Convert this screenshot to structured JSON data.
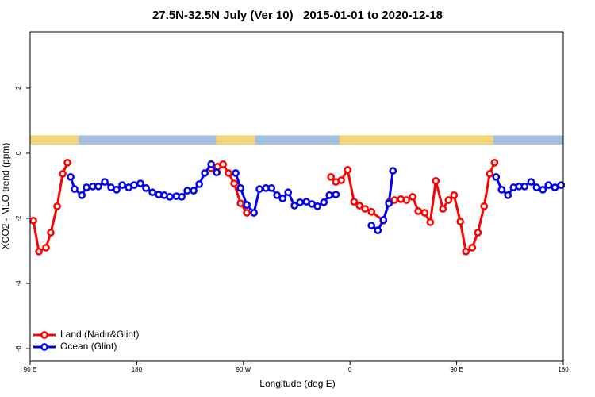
{
  "chart_data": {
    "type": "line",
    "title": "27.5N-32.5N July (Ver 10)   2015-01-01 to 2020-12-18",
    "xlabel": "Longitude (deg E)",
    "ylabel": "XCO2 - MLO trend (ppm)",
    "xlim": [
      90,
      540
    ],
    "xticks": [
      {
        "value": 90,
        "label": "90 E"
      },
      180,
      {
        "value": 270,
        "label": "90 W"
      },
      {
        "value": 360,
        "label": "0"
      },
      {
        "value": 450,
        "label": "90 E"
      },
      {
        "value": 540,
        "label": "180"
      }
    ],
    "ylim": [
      -6.39,
      3.73
    ],
    "yticks": [
      2,
      0,
      -2,
      -4,
      -6
    ],
    "legend": "bottomleft",
    "land_color": "#f5d57a",
    "ocean_color": "#a4bfe0",
    "land_segments": [
      [
        90,
        131
      ],
      [
        247,
        280
      ],
      [
        351,
        481
      ]
    ],
    "series": [
      {
        "name": "Land (Nadir&Glint)",
        "color": "#ff0000",
        "x": [
          92.7,
          97.4,
          103.4,
          107.4,
          112.8,
          117.5,
          121.5,
          null,
          242.7,
          248.1,
          252.8,
          257.5,
          262.2,
          267.6,
          272.9,
          null,
          343.9,
          348,
          352.6,
          358,
          363.4,
          368,
          372.7,
          378.1,
          388.2,
          392.8,
          397.5,
          402.9,
          407.6,
          412.9,
          417.6,
          423,
          427.7,
          432.4,
          438.4,
          443.1,
          447.8,
          453.1,
          457.8,
          463.2,
          467.9,
          473.2,
          477.9,
          482
        ],
        "values": [
          -2.07,
          -3.02,
          -2.9,
          -2.44,
          -1.63,
          -0.63,
          -0.29,
          null,
          -0.46,
          -0.41,
          -0.34,
          -0.61,
          -0.93,
          -1.54,
          -1.83,
          null,
          -0.73,
          -0.88,
          -0.83,
          -0.51,
          -1.49,
          -1.61,
          -1.71,
          -1.8,
          -2.07,
          -1.51,
          -1.44,
          -1.41,
          -1.44,
          -1.34,
          -1.78,
          -1.83,
          -2.12,
          -0.85,
          -1.71,
          -1.44,
          -1.29,
          -2.1,
          -3.02,
          -2.9,
          -2.44,
          -1.63,
          -0.63,
          -0.29
        ]
      },
      {
        "name": "Ocean (Glint)",
        "color": "#0000ee",
        "x": [
          124.2,
          127.5,
          133.6,
          137.6,
          142.9,
          147.6,
          153,
          158.3,
          163,
          167.7,
          173.1,
          177.8,
          183.1,
          187.8,
          193.2,
          198.5,
          203.2,
          207.9,
          213.3,
          218,
          222.7,
          228,
          232.7,
          237.4,
          242.8,
          247.5,
          null,
          263.5,
          267.6,
          272.9,
          278.9,
          283.6,
          289,
          293.7,
          298.4,
          303.1,
          307.8,
          313.1,
          317.8,
          323.2,
          327.9,
          332.5,
          337.9,
          342.6,
          348,
          null,
          378.1,
          383.5,
          388.2,
          392.8,
          396.2,
          null,
          483.3,
          488,
          493.3,
          498,
          502.7,
          507.4,
          512.8,
          517.5,
          522.8,
          527.5,
          532.9,
          538.2
        ],
        "values": [
          -0.73,
          -1.1,
          -1.29,
          -1.05,
          -1.02,
          -1.02,
          -0.88,
          -1.05,
          -1.12,
          -0.98,
          -1.05,
          -0.98,
          -0.93,
          -1.07,
          -1.2,
          -1.27,
          -1.29,
          -1.34,
          -1.32,
          -1.34,
          -1.15,
          -1.15,
          -0.95,
          -0.61,
          -0.34,
          -0.59,
          null,
          -0.61,
          -1.07,
          -1.59,
          -1.83,
          -1.1,
          -1.07,
          -1.07,
          -1.29,
          -1.39,
          -1.2,
          -1.61,
          -1.51,
          -1.49,
          -1.56,
          -1.63,
          -1.51,
          -1.29,
          -1.27,
          null,
          -2.22,
          -2.37,
          -2.05,
          -1.54,
          -0.54,
          null,
          -0.73,
          -1.12,
          -1.29,
          -1.05,
          -1.02,
          -1.02,
          -0.88,
          -1.05,
          -1.12,
          -0.98,
          -1.05,
          -0.98
        ]
      }
    ]
  }
}
